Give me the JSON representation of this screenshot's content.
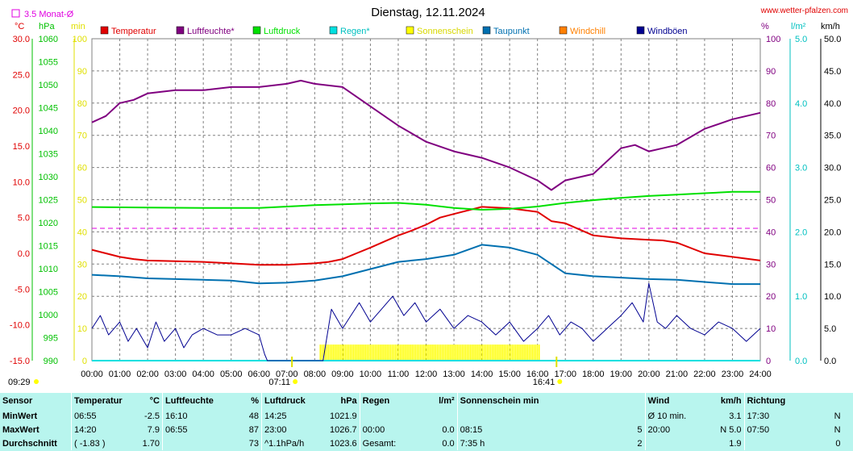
{
  "header": {
    "title": "Dienstag, 12.11.2024",
    "site": "www.wetter-pfalzen.com",
    "avg_note": "3.5 Monat-Ø",
    "left_time": "09:29",
    "sunrise": "07:11",
    "sunset": "16:41"
  },
  "units": {
    "temp": "°C",
    "pressure": "hPa",
    "sun": "min",
    "percent": "%",
    "rain": "l/m²",
    "wind": "km/h"
  },
  "colors": {
    "temperature": "#e00000",
    "humidity": "#800080",
    "pressure": "#00e000",
    "rain": "#00e0e0",
    "sunshine": "#ffff00",
    "dewpoint": "#0070b0",
    "windchill": "#ff8000",
    "gusts": "#000090",
    "avg_line": "#e000e0",
    "stats_bg": "#b8f5ee"
  },
  "chart_data": {
    "type": "line",
    "title": "Dienstag, 12.11.2024",
    "x_ticks": [
      "00:00",
      "01:00",
      "02:00",
      "03:00",
      "04:00",
      "05:00",
      "06:00",
      "07:00",
      "08:00",
      "09:00",
      "10:00",
      "11:00",
      "12:00",
      "13:00",
      "14:00",
      "15:00",
      "16:00",
      "17:00",
      "18:00",
      "19:00",
      "20:00",
      "21:00",
      "22:00",
      "23:00",
      "24:00"
    ],
    "axes": {
      "temp": {
        "label": "°C",
        "range": [
          -15,
          30
        ],
        "ticks": [
          "30.0",
          "25.0",
          "20.0",
          "15.0",
          "10.0",
          "5.0",
          "0.0",
          "-5.0",
          "-10.0",
          "-15.0"
        ]
      },
      "pressure": {
        "label": "hPa",
        "range": [
          990,
          1060
        ],
        "ticks": [
          "1060",
          "1055",
          "1050",
          "1045",
          "1040",
          "1035",
          "1030",
          "1025",
          "1020",
          "1015",
          "1010",
          "1005",
          "1000",
          "995",
          "990"
        ]
      },
      "sun": {
        "label": "min",
        "range": [
          0,
          100
        ],
        "ticks": [
          "100",
          "90",
          "80",
          "70",
          "60",
          "50",
          "40",
          "30",
          "20",
          "10",
          "0"
        ]
      },
      "percent": {
        "label": "%",
        "range": [
          0,
          100
        ],
        "ticks": [
          "100",
          "90",
          "80",
          "70",
          "60",
          "50",
          "40",
          "30",
          "20",
          "10",
          "0"
        ]
      },
      "rain": {
        "label": "l/m²",
        "range": [
          0,
          5
        ],
        "ticks": [
          "5.0",
          "4.0",
          "3.0",
          "2.0",
          "1.0",
          "0.0"
        ]
      },
      "wind": {
        "label": "km/h",
        "range": [
          0,
          50
        ],
        "ticks": [
          "50.0",
          "45.0",
          "40.0",
          "35.0",
          "30.0",
          "25.0",
          "20.0",
          "15.0",
          "10.0",
          "5.0",
          "0.0"
        ]
      }
    },
    "grid": true,
    "legend_position": "top",
    "temp_avg": 3.5,
    "sunshine_interval": [
      8.2,
      16.1
    ],
    "series": [
      {
        "name": "Temperatur",
        "axis": "temp",
        "x": [
          0,
          0.5,
          1,
          1.5,
          2,
          3,
          4,
          5,
          6,
          7,
          7.5,
          8,
          8.5,
          9,
          9.5,
          10,
          11,
          11.5,
          12,
          12.5,
          13,
          14,
          15,
          16,
          16.5,
          17,
          18,
          19,
          20,
          20.5,
          21,
          22,
          23,
          24
        ],
        "y": [
          0.5,
          0,
          -0.5,
          -0.8,
          -1,
          -1.1,
          -1.2,
          -1.4,
          -1.6,
          -1.6,
          -1.5,
          -1.4,
          -1.2,
          -0.8,
          0,
          0.8,
          2.5,
          3.2,
          4,
          5,
          5.5,
          6.5,
          6.3,
          5.8,
          4.5,
          4.2,
          2.5,
          2.1,
          1.9,
          1.8,
          1.5,
          0,
          -0.5,
          -1
        ]
      },
      {
        "name": "Luftfeuchte*",
        "axis": "percent",
        "x": [
          0,
          0.5,
          1,
          1.5,
          2,
          3,
          4,
          5,
          6,
          7,
          7.5,
          8,
          9,
          10,
          11,
          12,
          13,
          14,
          15,
          16,
          16.5,
          17,
          17.5,
          18,
          19,
          19.5,
          20,
          20.5,
          21,
          22,
          23,
          24
        ],
        "y": [
          74,
          76,
          80,
          81,
          83,
          84,
          84,
          85,
          85,
          86,
          87,
          86,
          85,
          79,
          73,
          68,
          65,
          63,
          60,
          56,
          53,
          56,
          57,
          58,
          66,
          67,
          65,
          66,
          67,
          72,
          75,
          77
        ]
      },
      {
        "name": "Luftdruck",
        "axis": "pressure",
        "x": [
          0,
          2,
          4,
          6,
          8,
          9,
          10,
          11,
          12,
          13,
          14,
          15,
          16,
          17,
          18,
          19,
          20,
          21,
          22,
          23,
          24
        ],
        "y": [
          1023.4,
          1023.3,
          1023.2,
          1023.2,
          1023.8,
          1024.0,
          1024.2,
          1024.3,
          1023.9,
          1023.2,
          1022.8,
          1023.0,
          1023.5,
          1024.3,
          1024.9,
          1025.4,
          1025.8,
          1026.1,
          1026.4,
          1026.7,
          1026.7
        ]
      },
      {
        "name": "Regen*",
        "axis": "rain",
        "x": [
          0,
          24
        ],
        "y": [
          0,
          0
        ]
      },
      {
        "name": "Sonnenschein",
        "axis": "sun",
        "x": [
          8.2,
          16.1
        ],
        "y": [
          5,
          5
        ]
      },
      {
        "name": "Taupunkt",
        "axis": "temp",
        "x": [
          0,
          1,
          2,
          3,
          4,
          5,
          6,
          7,
          8,
          9,
          10,
          11,
          12,
          13,
          14,
          15,
          16,
          16.5,
          17,
          18,
          19,
          20,
          21,
          22,
          23,
          24
        ],
        "y": [
          -3,
          -3.2,
          -3.5,
          -3.6,
          -3.7,
          -3.8,
          -4.2,
          -4.1,
          -3.8,
          -3.2,
          -2.2,
          -1.2,
          -0.8,
          -0.2,
          1.2,
          0.8,
          -0.2,
          -1.5,
          -2.8,
          -3.2,
          -3.4,
          -3.6,
          -3.7,
          -4.0,
          -4.3,
          -4.3
        ]
      },
      {
        "name": "Windchill",
        "axis": "temp",
        "x": [],
        "y": []
      },
      {
        "name": "Windböen",
        "axis": "wind",
        "x": [
          0,
          0.3,
          0.6,
          1,
          1.3,
          1.6,
          2,
          2.3,
          2.6,
          3,
          3.3,
          3.6,
          4,
          4.5,
          5,
          5.5,
          6,
          6.2,
          6.3,
          8.3,
          8.6,
          9,
          9.3,
          9.6,
          10,
          10.4,
          10.8,
          11.2,
          11.6,
          12,
          12.5,
          13,
          13.5,
          14,
          14.5,
          15,
          15.5,
          16,
          16.4,
          16.8,
          17.2,
          17.6,
          18,
          18.5,
          19,
          19.4,
          19.8,
          20,
          20.3,
          20.6,
          21,
          21.5,
          22,
          22.5,
          23,
          23.5,
          24
        ],
        "y": [
          5,
          7,
          4,
          6,
          3,
          5,
          2,
          6,
          3,
          5,
          2,
          4,
          5,
          4,
          4,
          5,
          4,
          1,
          0,
          0,
          8,
          5,
          7,
          9,
          6,
          8,
          10,
          7,
          9,
          6,
          8,
          5,
          7,
          6,
          4,
          6,
          3,
          5,
          7,
          4,
          6,
          5,
          3,
          5,
          7,
          9,
          6,
          12,
          6,
          5,
          7,
          5,
          4,
          6,
          5,
          3,
          5
        ]
      }
    ]
  },
  "stats": {
    "headers": {
      "sensor": "Sensor",
      "temp": "Temperatur",
      "temp_unit": "°C",
      "hum": "Luftfeuchte",
      "hum_unit": "%",
      "press": "Luftdruck",
      "press_unit": "hPa",
      "rain": "Regen",
      "rain_unit": "l/m²",
      "sun": "Sonnenschein min",
      "wind": "Wind",
      "wind_unit": "km/h",
      "dir": "Richtung"
    },
    "rows": [
      {
        "label": "MinWert",
        "temp_time": "06:55",
        "temp_val": "-2.5",
        "hum_time": "16:10",
        "hum_val": "48",
        "press_time": "14:25",
        "press_val": "1021.9",
        "rain_time": "",
        "rain_val": "",
        "sun_time": "",
        "sun_val": "",
        "wind_time": "Ø 10 min.",
        "wind_val": "3.1",
        "dir_time": "17:30",
        "dir_val": "N"
      },
      {
        "label": "MaxWert",
        "temp_time": "14:20",
        "temp_val": "7.9",
        "hum_time": "06:55",
        "hum_val": "87",
        "press_time": "23:00",
        "press_val": "1026.7",
        "rain_time": "00:00",
        "rain_val": "0.0",
        "sun_time": "08:15",
        "sun_val": "5",
        "wind_time": "20:00",
        "wind_val": "N 5.0",
        "dir_time": "07:50",
        "dir_val": "N"
      },
      {
        "label": "Durchschnitt",
        "temp_time": "( -1.83 )",
        "temp_val": "1.70",
        "hum_time": "",
        "hum_val": "73",
        "press_time": "^1.1hPa/h",
        "press_val": "1023.6",
        "rain_time": "Gesamt:",
        "rain_val": "0.0",
        "sun_time": "7:35 h",
        "sun_val": "2",
        "wind_time": "",
        "wind_val": "1.9",
        "dir_time": "",
        "dir_val": "0"
      }
    ]
  }
}
